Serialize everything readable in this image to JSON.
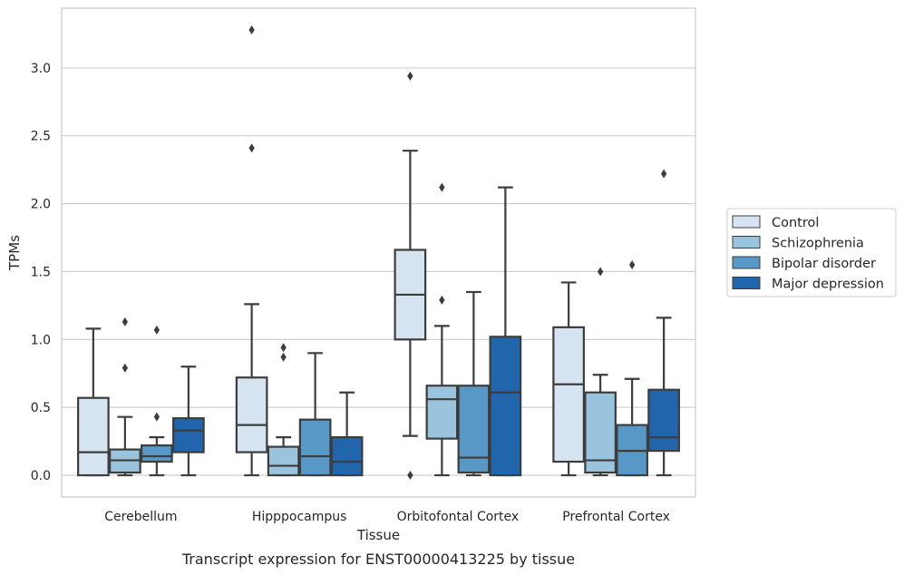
{
  "caption": "Transcript expression for ENST00000413225 by tissue",
  "chart_data": {
    "type": "box",
    "title": "",
    "xlabel": "Tissue",
    "ylabel": "TPMs",
    "ylim": [
      -0.16,
      3.44
    ],
    "yticks": [
      0.0,
      0.5,
      1.0,
      1.5,
      2.0,
      2.5,
      3.0
    ],
    "ytick_labels": [
      "0.0",
      "0.5",
      "1.0",
      "1.5",
      "2.0",
      "2.5",
      "3.0"
    ],
    "grid": "horizontal",
    "legend_position": "right",
    "categories": [
      "Cerebellum",
      "Hipppocampus",
      "Orbitofontal Cortex",
      "Prefrontal Cortex"
    ],
    "series": [
      {
        "name": "Control",
        "color": "#d6e4f2",
        "boxes": [
          {
            "whisker_low": 0.0,
            "q1": 0.0,
            "median": 0.17,
            "q3": 0.57,
            "whisker_high": 1.08,
            "outliers": []
          },
          {
            "whisker_low": 0.0,
            "q1": 0.17,
            "median": 0.37,
            "q3": 0.72,
            "whisker_high": 1.26,
            "outliers": [
              2.41,
              3.28
            ]
          },
          {
            "whisker_low": 0.29,
            "q1": 1.0,
            "median": 1.33,
            "q3": 1.66,
            "whisker_high": 2.39,
            "outliers": [
              2.94,
              0.0
            ]
          },
          {
            "whisker_low": 0.0,
            "q1": 0.1,
            "median": 0.67,
            "q3": 1.09,
            "whisker_high": 1.42,
            "outliers": []
          }
        ]
      },
      {
        "name": "Schizophrenia",
        "color": "#9ac3de",
        "boxes": [
          {
            "whisker_low": 0.0,
            "q1": 0.02,
            "median": 0.11,
            "q3": 0.19,
            "whisker_high": 0.43,
            "outliers": [
              0.79,
              1.13
            ]
          },
          {
            "whisker_low": 0.0,
            "q1": 0.0,
            "median": 0.07,
            "q3": 0.21,
            "whisker_high": 0.28,
            "outliers": [
              0.87,
              0.94
            ]
          },
          {
            "whisker_low": 0.0,
            "q1": 0.27,
            "median": 0.56,
            "q3": 0.66,
            "whisker_high": 1.1,
            "outliers": [
              1.29,
              2.12
            ]
          },
          {
            "whisker_low": 0.0,
            "q1": 0.02,
            "median": 0.11,
            "q3": 0.61,
            "whisker_high": 0.74,
            "outliers": [
              1.5
            ]
          }
        ]
      },
      {
        "name": "Bipolar disorder",
        "color": "#5898c7",
        "boxes": [
          {
            "whisker_low": 0.0,
            "q1": 0.1,
            "median": 0.14,
            "q3": 0.22,
            "whisker_high": 0.28,
            "outliers": [
              0.43,
              1.07
            ]
          },
          {
            "whisker_low": 0.0,
            "q1": 0.0,
            "median": 0.14,
            "q3": 0.41,
            "whisker_high": 0.9,
            "outliers": []
          },
          {
            "whisker_low": 0.0,
            "q1": 0.02,
            "median": 0.13,
            "q3": 0.66,
            "whisker_high": 1.35,
            "outliers": []
          },
          {
            "whisker_low": 0.0,
            "q1": 0.0,
            "median": 0.18,
            "q3": 0.37,
            "whisker_high": 0.71,
            "outliers": [
              1.55
            ]
          }
        ]
      },
      {
        "name": "Major depression",
        "color": "#2166ac",
        "boxes": [
          {
            "whisker_low": 0.0,
            "q1": 0.17,
            "median": 0.33,
            "q3": 0.42,
            "whisker_high": 0.8,
            "outliers": []
          },
          {
            "whisker_low": 0.0,
            "q1": 0.0,
            "median": 0.1,
            "q3": 0.28,
            "whisker_high": 0.61,
            "outliers": []
          },
          {
            "whisker_low": 0.0,
            "q1": 0.0,
            "median": 0.61,
            "q3": 1.02,
            "whisker_high": 2.12,
            "outliers": []
          },
          {
            "whisker_low": 0.0,
            "q1": 0.18,
            "median": 0.28,
            "q3": 0.63,
            "whisker_high": 1.16,
            "outliers": [
              2.22
            ]
          }
        ]
      }
    ]
  }
}
